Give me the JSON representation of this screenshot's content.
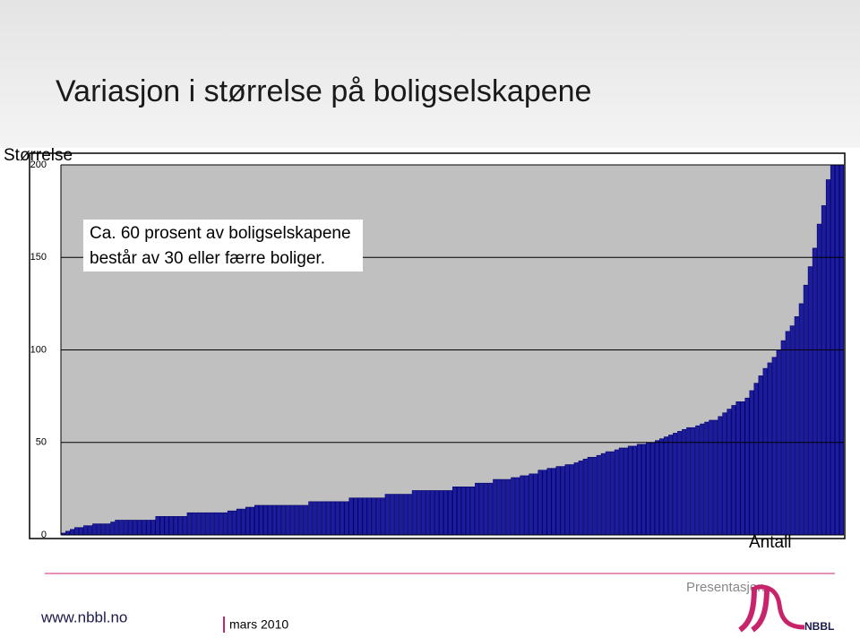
{
  "chart_data": {
    "type": "bar",
    "title": "Variasjon i størrelse på boligselskapene",
    "y_label": "Størrelse",
    "x_label": "Antall",
    "annotation": [
      "Ca. 60 prosent av boligselskapene",
      "består av 30 eller færre boliger."
    ],
    "color": "#1c1c9c",
    "plot_background": "#c0c0c0",
    "grid": true,
    "ylim": [
      0,
      200
    ],
    "yticks": [
      0,
      50,
      100,
      150,
      200
    ],
    "values": [
      1,
      2,
      3,
      4,
      4,
      5,
      5,
      6,
      6,
      6,
      6,
      7,
      8,
      8,
      8,
      8,
      8,
      8,
      8,
      8,
      8,
      10,
      10,
      10,
      10,
      10,
      10,
      10,
      12,
      12,
      12,
      12,
      12,
      12,
      12,
      12,
      12,
      13,
      13,
      14,
      14,
      15,
      15,
      16,
      16,
      16,
      16,
      16,
      16,
      16,
      16,
      16,
      16,
      16,
      16,
      18,
      18,
      18,
      18,
      18,
      18,
      18,
      18,
      18,
      20,
      20,
      20,
      20,
      20,
      20,
      20,
      20,
      22,
      22,
      22,
      22,
      22,
      22,
      24,
      24,
      24,
      24,
      24,
      24,
      24,
      24,
      24,
      26,
      26,
      26,
      26,
      26,
      28,
      28,
      28,
      28,
      30,
      30,
      30,
      30,
      31,
      31,
      32,
      32,
      33,
      33,
      35,
      35,
      36,
      36,
      37,
      37,
      38,
      38,
      39,
      40,
      41,
      42,
      42,
      43,
      44,
      45,
      45,
      46,
      47,
      47,
      48,
      48,
      49,
      49,
      50,
      50,
      51,
      52,
      53,
      54,
      55,
      56,
      57,
      58,
      58,
      59,
      60,
      61,
      62,
      62,
      64,
      66,
      68,
      70,
      72,
      72,
      74,
      78,
      82,
      86,
      90,
      93,
      96,
      100,
      105,
      110,
      113,
      118,
      125,
      135,
      145,
      155,
      168,
      178,
      192,
      200,
      200,
      200
    ]
  },
  "footer": {
    "section": "Presentasjon",
    "website": "www.nbbl.no",
    "date": "mars 2010",
    "logo": "NBBL"
  }
}
